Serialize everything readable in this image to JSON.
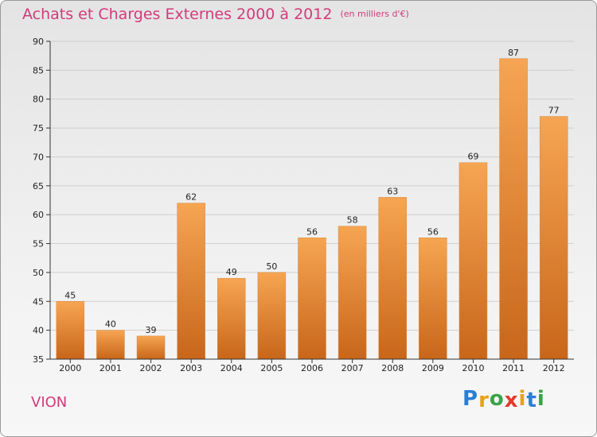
{
  "chart_data": {
    "type": "bar",
    "title": "Achats et Charges Externes 2000 à 2012",
    "unit_note": "(en milliers d'€)",
    "categories": [
      "2000",
      "2001",
      "2002",
      "2003",
      "2004",
      "2005",
      "2006",
      "2007",
      "2008",
      "2009",
      "2010",
      "2011",
      "2012"
    ],
    "values": [
      45,
      40,
      39,
      62,
      49,
      50,
      56,
      58,
      63,
      56,
      69,
      87,
      77
    ],
    "ylim": [
      35,
      90
    ],
    "yticks": [
      35,
      40,
      45,
      50,
      55,
      60,
      65,
      70,
      75,
      80,
      85,
      90
    ],
    "grid": true,
    "xlabel": "",
    "ylabel": ""
  },
  "commune": "VION",
  "logo": {
    "letters": [
      "P",
      "r",
      "o",
      "x",
      "i",
      "t",
      "i"
    ],
    "colors": [
      "#2a7fd4",
      "#e8a11b",
      "#3aa34a",
      "#e23a2a",
      "#e8a11b",
      "#2a7fd4",
      "#3aa34a"
    ]
  },
  "colors": {
    "bar_top": "#f6a553",
    "bar_bottom": "#c8661a",
    "accent": "#d43a7a",
    "axis": "#333333",
    "grid": "#cfcfcf"
  }
}
